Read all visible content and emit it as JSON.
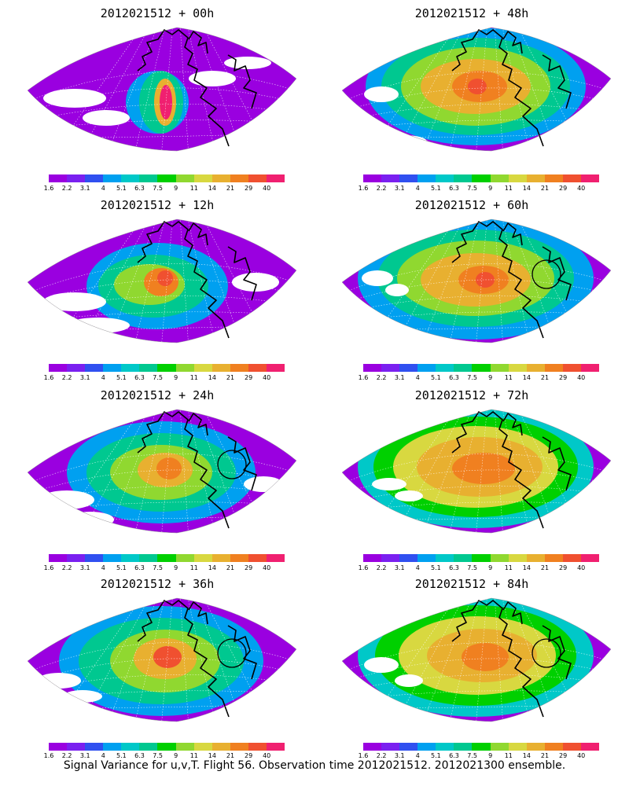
{
  "panels": [
    {
      "title": "2012021512 + 00h",
      "lead_hours": 0
    },
    {
      "title": "2012021512 + 48h",
      "lead_hours": 48
    },
    {
      "title": "2012021512 + 12h",
      "lead_hours": 12
    },
    {
      "title": "2012021512 + 60h",
      "lead_hours": 60
    },
    {
      "title": "2012021512 + 24h",
      "lead_hours": 24
    },
    {
      "title": "2012021512 + 72h",
      "lead_hours": 72
    },
    {
      "title": "2012021512 + 36h",
      "lead_hours": 36
    },
    {
      "title": "2012021512 + 84h",
      "lead_hours": 84
    }
  ],
  "colorbar": {
    "colors": [
      "#9a00e0",
      "#7a20f0",
      "#3050f0",
      "#00a0f0",
      "#00c8c8",
      "#00c890",
      "#00d000",
      "#90d830",
      "#d8d840",
      "#e8b030",
      "#f08020",
      "#f05030",
      "#f02070"
    ],
    "labels": [
      "1.6",
      "2.2",
      "3.1",
      "4",
      "5.1",
      "6.3",
      "7.5",
      "9",
      "11",
      "14",
      "21",
      "29",
      "40"
    ]
  },
  "caption": "Signal Variance for u,v,T. Flight 56. Observation time 2012021512. 2012021300 ensemble."
}
